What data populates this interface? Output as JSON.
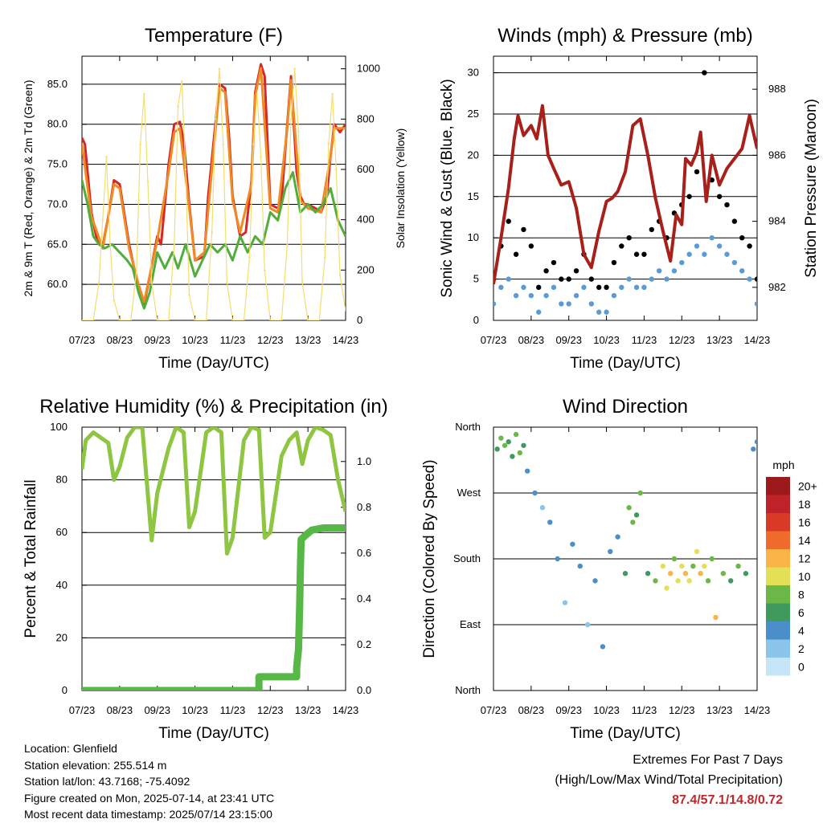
{
  "chart_data": [
    {
      "type": "line",
      "title": "Temperature (F)",
      "xlabel": "Time (Day/UTC)",
      "ylabel": "2m & 9m T (Red, Orange) & 2m Td (Green)",
      "y2label": "Solar Insolation (Yellow)",
      "x_ticks": [
        "07/23",
        "08/23",
        "09/23",
        "10/23",
        "11/23",
        "12/23",
        "13/23",
        "14/23"
      ],
      "ylim": [
        55.5,
        88.5
      ],
      "yticks": [
        "60.0",
        "65.0",
        "70.0",
        "75.0",
        "80.0",
        "85.0"
      ],
      "y2lim": [
        0,
        1050
      ],
      "y2ticks": [
        "0",
        "200",
        "400",
        "600",
        "800",
        "1000"
      ],
      "grid": true,
      "series": [
        {
          "name": "2m T",
          "color": "#d62728",
          "x": [
            0,
            0.08,
            0.15,
            0.25,
            0.4,
            0.55,
            0.7,
            0.85,
            1.0,
            1.25,
            1.5,
            1.65,
            1.8,
            2.0,
            2.1,
            2.2,
            2.3,
            2.45,
            2.6,
            2.7,
            2.85,
            3.0,
            3.25,
            3.35,
            3.5,
            3.65,
            3.8,
            3.9,
            4.0,
            4.2,
            4.35,
            4.5,
            4.6,
            4.75,
            4.85,
            5.0,
            5.2,
            5.3,
            5.45,
            5.55,
            5.7,
            5.8,
            5.9,
            6.0,
            6.2,
            6.35,
            6.5,
            6.6,
            6.7,
            6.85,
            7.0
          ],
          "values": [
            78.3,
            77.5,
            74,
            69,
            65.5,
            64.8,
            68.5,
            73,
            72.5,
            65,
            59.5,
            57.5,
            61,
            66,
            65,
            70,
            75,
            80,
            80.3,
            78,
            70,
            63,
            63.5,
            71,
            78,
            85,
            84.5,
            79,
            71,
            66,
            66.5,
            73,
            84,
            87.5,
            86,
            70,
            69.5,
            70.5,
            80,
            86,
            74,
            71,
            70,
            70,
            69.5,
            69,
            71,
            76,
            80,
            79,
            80
          ]
        },
        {
          "name": "9m T",
          "color": "#f08a24",
          "x": [
            0,
            0.25,
            0.55,
            0.85,
            1.0,
            1.25,
            1.5,
            1.65,
            2.0,
            2.3,
            2.45,
            2.6,
            2.85,
            3.0,
            3.25,
            3.5,
            3.65,
            3.8,
            4.0,
            4.2,
            4.5,
            4.6,
            4.75,
            5.0,
            5.2,
            5.45,
            5.55,
            5.8,
            6.0,
            6.35,
            6.6,
            6.7,
            7.0
          ],
          "values": [
            77.5,
            68.5,
            64.5,
            72.5,
            72,
            64.5,
            60,
            57.8,
            65.5,
            74,
            79,
            79.5,
            69.5,
            63,
            64,
            77,
            84.5,
            84,
            70.5,
            66.5,
            72.5,
            83.5,
            87,
            69.5,
            69,
            79.5,
            85.5,
            70.5,
            69.5,
            69,
            76,
            79.5,
            79.5
          ]
        },
        {
          "name": "2m Td",
          "color": "#52ae3a",
          "x": [
            0,
            0.15,
            0.3,
            0.45,
            0.6,
            0.8,
            1.0,
            1.2,
            1.35,
            1.5,
            1.65,
            1.8,
            2.0,
            2.2,
            2.4,
            2.55,
            2.75,
            3.0,
            3.2,
            3.4,
            3.6,
            3.8,
            4.0,
            4.2,
            4.4,
            4.6,
            4.8,
            5.0,
            5.2,
            5.4,
            5.6,
            5.8,
            6.0,
            6.2,
            6.4,
            6.6,
            6.8,
            7.0
          ],
          "values": [
            73,
            70,
            66,
            65,
            64.5,
            65,
            64,
            63,
            62,
            59,
            57,
            59,
            64,
            62,
            64,
            62,
            65,
            61,
            63,
            65,
            64,
            65,
            63,
            66,
            64,
            66,
            65,
            69,
            68,
            72,
            74,
            69,
            70,
            69,
            70,
            72,
            68,
            66
          ]
        },
        {
          "name": "Solar Insolation",
          "axis": "y2",
          "color": "#f5dd6e",
          "x": [
            0,
            0.3,
            0.45,
            0.55,
            0.65,
            0.75,
            0.85,
            1.0,
            1.3,
            1.45,
            1.55,
            1.65,
            1.75,
            1.85,
            2.0,
            2.3,
            2.45,
            2.55,
            2.65,
            2.75,
            2.85,
            3.0,
            3.3,
            3.45,
            3.55,
            3.65,
            3.75,
            3.85,
            4.0,
            4.3,
            4.45,
            4.55,
            4.65,
            4.75,
            4.85,
            5.0,
            5.3,
            5.45,
            5.55,
            5.65,
            5.75,
            5.85,
            6.0,
            6.3,
            6.45,
            6.55,
            6.65,
            6.75,
            6.85,
            7.0
          ],
          "values": [
            0,
            0,
            150,
            400,
            650,
            300,
            80,
            0,
            0,
            200,
            700,
            900,
            550,
            150,
            0,
            0,
            300,
            850,
            950,
            600,
            100,
            0,
            0,
            350,
            800,
            1000,
            700,
            150,
            0,
            0,
            250,
            700,
            900,
            650,
            200,
            0,
            0,
            300,
            800,
            1000,
            750,
            150,
            0,
            0,
            250,
            700,
            900,
            600,
            180,
            40
          ]
        }
      ]
    },
    {
      "type": "scatter",
      "title": "Winds (mph) & Pressure (mb)",
      "xlabel": "Time (Day/UTC)",
      "ylabel": "Sonic Wind & Gust (Blue, Black)",
      "y2label": "Station Pressure (Maroon)",
      "x_ticks": [
        "07/23",
        "08/23",
        "09/23",
        "10/23",
        "11/23",
        "12/23",
        "13/23",
        "14/23"
      ],
      "ylim": [
        0,
        32
      ],
      "yticks": [
        "0",
        "5",
        "10",
        "15",
        "20",
        "25",
        "30"
      ],
      "y2lim": [
        981.0,
        989.0
      ],
      "y2ticks": [
        "982",
        "984",
        "986",
        "988"
      ],
      "grid": true,
      "series": [
        {
          "name": "Sonic Wind",
          "color": "#5b9bd5",
          "x": [
            0,
            0.2,
            0.4,
            0.6,
            0.8,
            1.0,
            1.2,
            1.4,
            1.6,
            1.8,
            2.0,
            2.2,
            2.4,
            2.6,
            2.8,
            3.0,
            3.2,
            3.4,
            3.6,
            3.8,
            4.0,
            4.2,
            4.4,
            4.6,
            4.8,
            5.0,
            5.2,
            5.4,
            5.6,
            5.8,
            6.0,
            6.2,
            6.4,
            6.6,
            6.8,
            7.0
          ],
          "values": [
            2,
            4,
            5,
            3,
            4,
            3,
            1,
            3,
            4,
            2,
            2,
            3,
            4,
            2,
            1,
            1,
            3,
            4,
            5,
            4,
            4,
            5,
            6,
            5,
            6,
            7,
            8,
            9,
            8,
            10,
            9,
            8,
            7,
            6,
            5,
            2
          ]
        },
        {
          "name": "Gust",
          "color": "#000000",
          "x": [
            0,
            0.2,
            0.4,
            0.6,
            0.8,
            1.0,
            1.2,
            1.4,
            1.6,
            1.8,
            2.0,
            2.2,
            2.4,
            2.6,
            2.8,
            3.0,
            3.2,
            3.4,
            3.6,
            3.8,
            4.0,
            4.2,
            4.4,
            4.6,
            4.8,
            5.0,
            5.2,
            5.4,
            5.6,
            5.8,
            6.0,
            6.2,
            6.4,
            6.6,
            6.8,
            7.0
          ],
          "values": [
            5,
            9,
            12,
            8,
            11,
            9,
            4,
            6,
            7,
            5,
            5,
            6,
            8,
            5,
            4,
            4,
            7,
            9,
            10,
            8,
            8,
            11,
            12,
            10,
            13,
            14,
            15,
            18,
            30,
            17,
            15,
            14,
            12,
            10,
            9,
            5
          ]
        },
        {
          "name": "Station Pressure",
          "axis": "y2",
          "color": "#a8201a",
          "x": [
            0,
            0.2,
            0.4,
            0.55,
            0.65,
            0.8,
            1.0,
            1.15,
            1.3,
            1.45,
            1.6,
            1.8,
            2.0,
            2.2,
            2.4,
            2.6,
            2.8,
            3.0,
            3.15,
            3.3,
            3.5,
            3.7,
            3.9,
            4.1,
            4.3,
            4.5,
            4.7,
            4.85,
            5.0,
            5.1,
            5.25,
            5.4,
            5.5,
            5.65,
            5.8,
            6.0,
            6.2,
            6.4,
            6.6,
            6.8,
            7.0
          ],
          "values": [
            982.1,
            983.5,
            985.0,
            986.5,
            987.2,
            986.6,
            986.9,
            986.5,
            987.5,
            986.0,
            985.6,
            985.1,
            985.2,
            984.4,
            983.0,
            982.6,
            983.7,
            984.6,
            984.7,
            984.9,
            985.5,
            986.9,
            987.1,
            986.0,
            984.7,
            983.7,
            982.8,
            984.2,
            983.9,
            985.9,
            985.7,
            986.1,
            986.7,
            984.6,
            986.0,
            985.1,
            985.6,
            985.9,
            986.2,
            987.2,
            986.2
          ]
        }
      ]
    },
    {
      "type": "line",
      "title": "Relative Humidity (%) & Precipitation (in)",
      "xlabel": "Time (Day/UTC)",
      "ylabel": "Percent & Total Rainfall",
      "x_ticks": [
        "07/23",
        "08/23",
        "09/23",
        "10/23",
        "11/23",
        "12/23",
        "13/23",
        "14/23"
      ],
      "ylim": [
        0,
        100
      ],
      "yticks": [
        "0",
        "20",
        "40",
        "60",
        "80",
        "100"
      ],
      "y2lim": [
        0,
        1.15
      ],
      "y2ticks": [
        "0.0",
        "0.2",
        "0.4",
        "0.6",
        "0.8",
        "1.0"
      ],
      "grid": true,
      "series": [
        {
          "name": "Relative Humidity",
          "color": "#8ec641",
          "x": [
            0,
            0.1,
            0.3,
            0.5,
            0.7,
            0.85,
            1.0,
            1.2,
            1.4,
            1.6,
            1.85,
            2.0,
            2.3,
            2.5,
            2.7,
            2.85,
            3.0,
            3.3,
            3.5,
            3.7,
            3.85,
            4.0,
            4.3,
            4.5,
            4.7,
            4.85,
            5.0,
            5.3,
            5.5,
            5.7,
            5.85,
            6.0,
            6.2,
            6.4,
            6.6,
            6.8,
            7.0
          ],
          "values": [
            84,
            95,
            98,
            96,
            94,
            80,
            85,
            96,
            100,
            100,
            57,
            75,
            92,
            100,
            98,
            62,
            68,
            98,
            100,
            98,
            52,
            58,
            95,
            100,
            99,
            58,
            60,
            89,
            95,
            98,
            86,
            95,
            100,
            99,
            97,
            80,
            68
          ]
        },
        {
          "name": "Total Precipitation",
          "axis": "y2",
          "color": "#57b847",
          "x": [
            0,
            4.7,
            4.7,
            5.7,
            5.7,
            5.75,
            5.78,
            5.8,
            5.82,
            5.95,
            6.1,
            6.4,
            6.6,
            7.0
          ],
          "values": [
            0,
            0,
            0.06,
            0.06,
            0.1,
            0.18,
            0.36,
            0.54,
            0.66,
            0.68,
            0.7,
            0.71,
            0.71,
            0.71
          ]
        }
      ]
    },
    {
      "type": "scatter",
      "title": "Wind Direction",
      "xlabel": "Time (Day/UTC)",
      "ylabel": "Direction (Colored By Speed)",
      "x_ticks": [
        "07/23",
        "08/23",
        "09/23",
        "10/23",
        "11/23",
        "12/23",
        "13/23",
        "14/23"
      ],
      "ylim": [
        0,
        360
      ],
      "yticks": [
        "North",
        "East",
        "South",
        "West",
        "North"
      ],
      "grid": true,
      "colorbar": {
        "title": "mph",
        "labels": [
          "0",
          "2",
          "4",
          "6",
          "8",
          "10",
          "12",
          "14",
          "16",
          "18",
          "20+"
        ],
        "colors": [
          "#c6e6f7",
          "#8bc4ea",
          "#4a8fc9",
          "#3f9a5d",
          "#6cb847",
          "#e3df57",
          "#f9b347",
          "#ef6a2b",
          "#d83a26",
          "#c0222a",
          "#9c1a1c"
        ]
      },
      "series": [
        {
          "name": "Direction",
          "x": [
            0.1,
            0.2,
            0.3,
            0.4,
            0.5,
            0.6,
            0.7,
            0.8,
            0.9,
            1.1,
            1.3,
            1.5,
            1.7,
            1.9,
            2.1,
            2.3,
            2.5,
            2.7,
            2.9,
            3.1,
            3.3,
            3.5,
            3.6,
            3.7,
            3.8,
            3.9,
            4.1,
            4.3,
            4.5,
            4.6,
            4.7,
            4.8,
            4.9,
            5.0,
            5.1,
            5.2,
            5.3,
            5.4,
            5.5,
            5.6,
            5.7,
            5.8,
            5.9,
            6.1,
            6.3,
            6.5,
            6.7,
            6.9,
            7.0
          ],
          "values": [
            330,
            345,
            335,
            340,
            320,
            350,
            325,
            335,
            300,
            270,
            250,
            230,
            180,
            120,
            200,
            170,
            90,
            150,
            60,
            190,
            210,
            160,
            250,
            230,
            240,
            270,
            160,
            150,
            170,
            140,
            160,
            180,
            150,
            170,
            160,
            150,
            170,
            190,
            160,
            170,
            150,
            180,
            100,
            160,
            150,
            170,
            160,
            330,
            340
          ],
          "speeds": [
            6,
            7,
            8,
            6,
            5,
            7,
            8,
            6,
            4,
            3,
            2,
            3,
            4,
            2,
            3,
            4,
            2,
            3,
            4,
            3,
            4,
            5,
            7,
            8,
            6,
            7,
            6,
            8,
            9,
            10,
            11,
            8,
            9,
            10,
            12,
            9,
            8,
            10,
            11,
            9,
            7,
            8,
            12,
            7,
            6,
            7,
            5,
            4,
            3
          ]
        }
      ]
    }
  ],
  "info": {
    "location": "Location: Glenfield",
    "elevation": "Station elevation: 255.514 m",
    "latlon": "Station lat/lon: 43.7168; -75.4092",
    "created": "Figure created on Mon, 2025-07-14, at 23:41 UTC",
    "recent": "Most recent data timestamp: 2025/07/14 23:15:00"
  },
  "extremes": {
    "heading": "Extremes For Past 7 Days",
    "sub": "(High/Low/Max Wind/Total Precipitation)",
    "values": "87.4/57.1/14.8/0.72"
  }
}
